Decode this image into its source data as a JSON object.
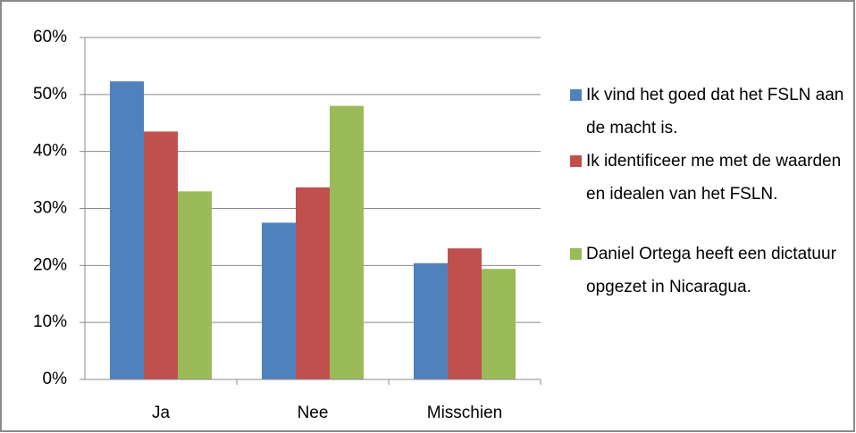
{
  "chart_data": {
    "type": "bar",
    "categories": [
      "Ja",
      "Nee",
      "Misschien"
    ],
    "series": [
      {
        "name": "Ik vind het goed dat het FSLN aan de macht is.",
        "color": "#4f81bd",
        "values": [
          52.3,
          27.5,
          20.4
        ]
      },
      {
        "name": "Ik identificeer me met de waarden en idealen van het FSLN.",
        "color": "#c0504d",
        "values": [
          43.5,
          33.7,
          23
        ]
      },
      {
        "name": "Daniel Ortega heeft een dictatuur opgezet in Nicaragua.",
        "color": "#9bbb59",
        "values": [
          33,
          48,
          19.4
        ]
      }
    ],
    "ylim": [
      0,
      60
    ],
    "yticks": [
      {
        "value": 0,
        "label": "0%"
      },
      {
        "value": 10,
        "label": "10%"
      },
      {
        "value": 20,
        "label": "20%"
      },
      {
        "value": 30,
        "label": "30%"
      },
      {
        "value": 40,
        "label": "40%"
      },
      {
        "value": 50,
        "label": "50%"
      },
      {
        "value": 60,
        "label": "60%"
      }
    ],
    "grid": true,
    "legend": "right"
  }
}
